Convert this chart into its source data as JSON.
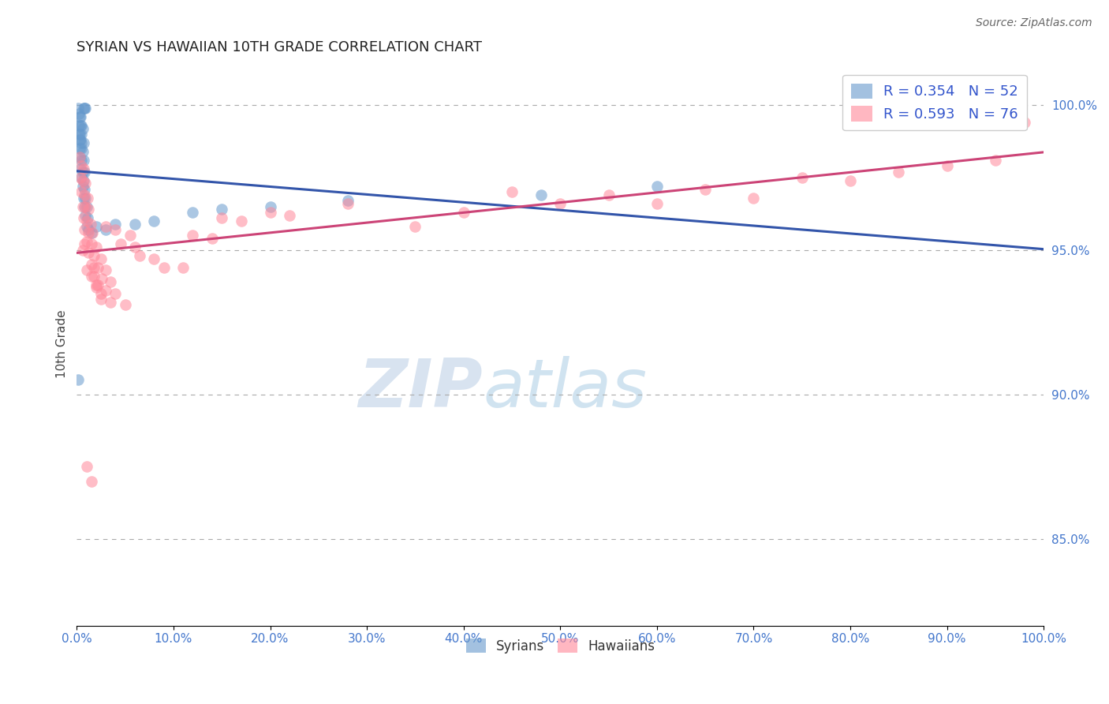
{
  "title": "SYRIAN VS HAWAIIAN 10TH GRADE CORRELATION CHART",
  "source": "Source: ZipAtlas.com",
  "ylabel": "10th Grade",
  "xlim": [
    0.0,
    1.0
  ],
  "ylim": [
    0.82,
    1.015
  ],
  "yticks": [
    0.85,
    0.9,
    0.95,
    1.0
  ],
  "ytick_labels": [
    "85.0%",
    "90.0%",
    "95.0%",
    "100.0%"
  ],
  "xtick_vals": [
    0.0,
    0.1,
    0.2,
    0.3,
    0.4,
    0.5,
    0.6,
    0.7,
    0.8,
    0.9,
    1.0
  ],
  "xtick_labels": [
    "0.0%",
    "10.0%",
    "20.0%",
    "30.0%",
    "40.0%",
    "50.0%",
    "60.0%",
    "70.0%",
    "80.0%",
    "90.0%",
    "100.0%"
  ],
  "blue_R": 0.354,
  "blue_N": 52,
  "pink_R": 0.593,
  "pink_N": 76,
  "legend_label1": "Syrians",
  "legend_label2": "Hawaiians",
  "blue_color": "#6699cc",
  "pink_color": "#ff8899",
  "blue_line_color": "#3355aa",
  "pink_line_color": "#cc4477",
  "watermark_zip": "ZIP",
  "watermark_atlas": "atlas",
  "blue_points": [
    [
      0.001,
      0.999
    ],
    [
      0.007,
      0.999
    ],
    [
      0.008,
      0.999
    ],
    [
      0.009,
      0.999
    ],
    [
      0.002,
      0.997
    ],
    [
      0.003,
      0.996
    ],
    [
      0.004,
      0.996
    ],
    [
      0.002,
      0.993
    ],
    [
      0.004,
      0.993
    ],
    [
      0.005,
      0.993
    ],
    [
      0.006,
      0.992
    ],
    [
      0.002,
      0.99
    ],
    [
      0.003,
      0.99
    ],
    [
      0.005,
      0.99
    ],
    [
      0.003,
      0.988
    ],
    [
      0.004,
      0.988
    ],
    [
      0.005,
      0.987
    ],
    [
      0.007,
      0.987
    ],
    [
      0.003,
      0.985
    ],
    [
      0.005,
      0.985
    ],
    [
      0.006,
      0.984
    ],
    [
      0.003,
      0.982
    ],
    [
      0.005,
      0.981
    ],
    [
      0.007,
      0.981
    ],
    [
      0.004,
      0.978
    ],
    [
      0.006,
      0.977
    ],
    [
      0.008,
      0.977
    ],
    [
      0.005,
      0.975
    ],
    [
      0.007,
      0.974
    ],
    [
      0.006,
      0.972
    ],
    [
      0.008,
      0.971
    ],
    [
      0.007,
      0.968
    ],
    [
      0.009,
      0.968
    ],
    [
      0.008,
      0.965
    ],
    [
      0.01,
      0.965
    ],
    [
      0.009,
      0.962
    ],
    [
      0.011,
      0.961
    ],
    [
      0.01,
      0.958
    ],
    [
      0.012,
      0.957
    ],
    [
      0.015,
      0.956
    ],
    [
      0.02,
      0.958
    ],
    [
      0.03,
      0.957
    ],
    [
      0.04,
      0.959
    ],
    [
      0.06,
      0.959
    ],
    [
      0.08,
      0.96
    ],
    [
      0.12,
      0.963
    ],
    [
      0.15,
      0.964
    ],
    [
      0.2,
      0.965
    ],
    [
      0.28,
      0.967
    ],
    [
      0.48,
      0.969
    ],
    [
      0.6,
      0.972
    ],
    [
      0.001,
      0.905
    ]
  ],
  "pink_points": [
    [
      0.003,
      0.982
    ],
    [
      0.005,
      0.979
    ],
    [
      0.007,
      0.978
    ],
    [
      0.004,
      0.975
    ],
    [
      0.006,
      0.974
    ],
    [
      0.009,
      0.973
    ],
    [
      0.005,
      0.97
    ],
    [
      0.008,
      0.969
    ],
    [
      0.011,
      0.968
    ],
    [
      0.006,
      0.965
    ],
    [
      0.009,
      0.965
    ],
    [
      0.012,
      0.964
    ],
    [
      0.007,
      0.961
    ],
    [
      0.01,
      0.96
    ],
    [
      0.014,
      0.959
    ],
    [
      0.008,
      0.957
    ],
    [
      0.012,
      0.956
    ],
    [
      0.016,
      0.956
    ],
    [
      0.01,
      0.953
    ],
    [
      0.015,
      0.952
    ],
    [
      0.02,
      0.951
    ],
    [
      0.012,
      0.949
    ],
    [
      0.018,
      0.948
    ],
    [
      0.025,
      0.947
    ],
    [
      0.015,
      0.945
    ],
    [
      0.022,
      0.944
    ],
    [
      0.03,
      0.943
    ],
    [
      0.018,
      0.941
    ],
    [
      0.026,
      0.94
    ],
    [
      0.035,
      0.939
    ],
    [
      0.02,
      0.937
    ],
    [
      0.03,
      0.936
    ],
    [
      0.04,
      0.935
    ],
    [
      0.025,
      0.933
    ],
    [
      0.035,
      0.932
    ],
    [
      0.05,
      0.931
    ],
    [
      0.03,
      0.958
    ],
    [
      0.04,
      0.957
    ],
    [
      0.055,
      0.955
    ],
    [
      0.045,
      0.952
    ],
    [
      0.06,
      0.951
    ],
    [
      0.065,
      0.948
    ],
    [
      0.08,
      0.947
    ],
    [
      0.09,
      0.944
    ],
    [
      0.11,
      0.944
    ],
    [
      0.12,
      0.955
    ],
    [
      0.14,
      0.954
    ],
    [
      0.15,
      0.961
    ],
    [
      0.17,
      0.96
    ],
    [
      0.2,
      0.963
    ],
    [
      0.22,
      0.962
    ],
    [
      0.28,
      0.966
    ],
    [
      0.35,
      0.958
    ],
    [
      0.4,
      0.963
    ],
    [
      0.45,
      0.97
    ],
    [
      0.5,
      0.966
    ],
    [
      0.55,
      0.969
    ],
    [
      0.6,
      0.966
    ],
    [
      0.65,
      0.971
    ],
    [
      0.7,
      0.968
    ],
    [
      0.75,
      0.975
    ],
    [
      0.8,
      0.974
    ],
    [
      0.85,
      0.977
    ],
    [
      0.9,
      0.979
    ],
    [
      0.95,
      0.981
    ],
    [
      0.98,
      0.994
    ],
    [
      0.01,
      0.943
    ],
    [
      0.015,
      0.941
    ],
    [
      0.02,
      0.938
    ],
    [
      0.025,
      0.935
    ],
    [
      0.01,
      0.875
    ],
    [
      0.015,
      0.87
    ],
    [
      0.008,
      0.952
    ],
    [
      0.006,
      0.95
    ],
    [
      0.018,
      0.944
    ],
    [
      0.022,
      0.938
    ]
  ]
}
